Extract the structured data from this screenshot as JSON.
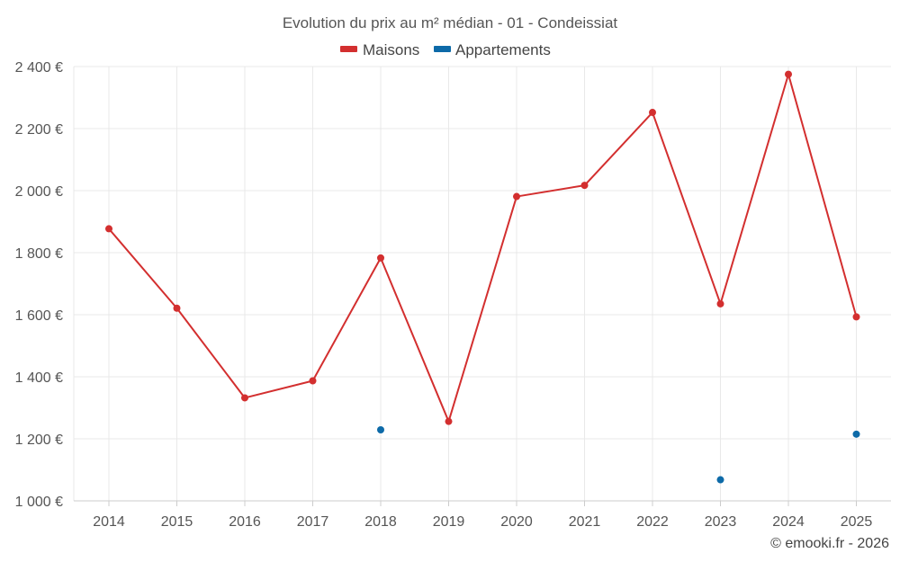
{
  "chart_data": {
    "type": "line",
    "title": "Evolution du prix au m² médian - 01 - Condeissiat",
    "categories": [
      "2014",
      "2015",
      "2016",
      "2017",
      "2018",
      "2019",
      "2020",
      "2021",
      "2022",
      "2023",
      "2024",
      "2025"
    ],
    "series": [
      {
        "name": "Maisons",
        "color": "#d32f2f",
        "connected": true,
        "values": [
          1877,
          1621,
          1332,
          1387,
          1783,
          1256,
          1981,
          2017,
          2252,
          1635,
          2375,
          1593
        ]
      },
      {
        "name": "Appartements",
        "color": "#0d6aa8",
        "connected": false,
        "values": [
          null,
          null,
          null,
          null,
          1229,
          null,
          null,
          null,
          null,
          1068,
          null,
          1215
        ]
      }
    ],
    "ylim": [
      1000,
      2400
    ],
    "yticks": [
      1000,
      1200,
      1400,
      1600,
      1800,
      2000,
      2200,
      2400
    ],
    "ytick_labels": [
      "1 000 €",
      "1 200 €",
      "1 400 €",
      "1 600 €",
      "1 800 €",
      "2 000 €",
      "2 200 €",
      "2 400 €"
    ],
    "xlabel": "",
    "ylabel": "",
    "grid": true,
    "legend": "top-center"
  },
  "credit": "© emooki.fr - 2026"
}
